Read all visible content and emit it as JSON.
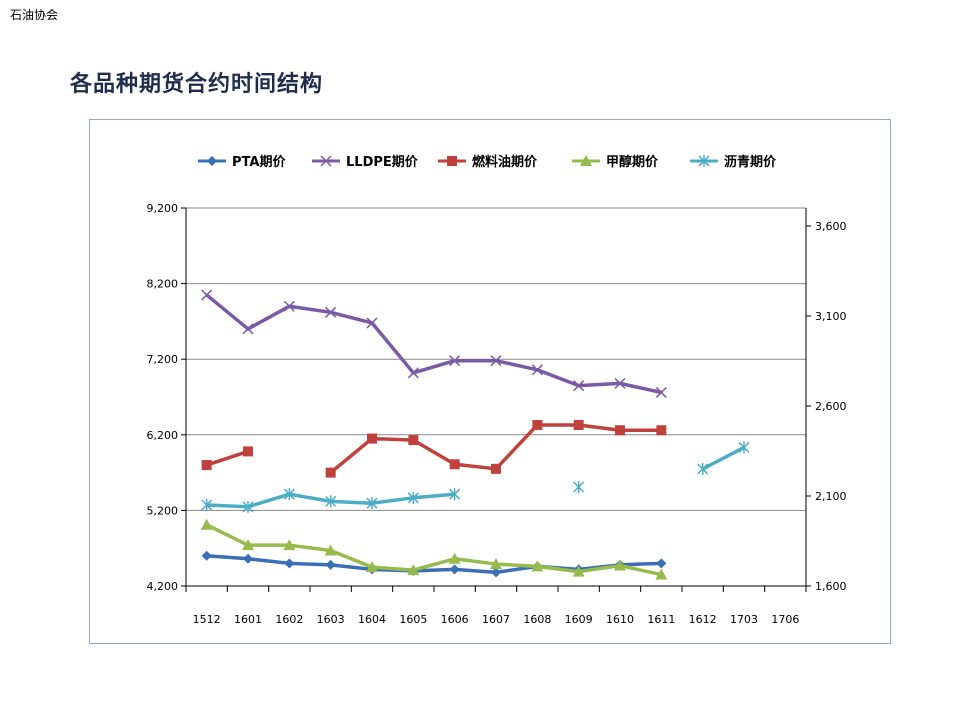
{
  "header": {
    "corner_label": "石油协会"
  },
  "page": {
    "title": "各品种期货合约时间结构"
  },
  "chart_data": {
    "type": "line",
    "categories": [
      "1512",
      "1601",
      "1602",
      "1603",
      "1604",
      "1605",
      "1606",
      "1607",
      "1608",
      "1609",
      "1610",
      "1611",
      "1612",
      "1703",
      "1706"
    ],
    "y_left": {
      "ylim": [
        4200,
        9200
      ],
      "ticks": [
        4200,
        5200,
        6200,
        7200,
        8200,
        9200
      ],
      "tick_labels": [
        "4,200",
        "5,200",
        "6,200",
        "7,200",
        "8,200",
        "9,200"
      ]
    },
    "y_right": {
      "ylim": [
        1600,
        3700
      ],
      "ticks": [
        1600,
        2100,
        2600,
        3100,
        3600
      ],
      "tick_labels": [
        "1,600",
        "2,100",
        "2,600",
        "3,100",
        "3,600"
      ]
    },
    "grid": true,
    "legend_position": "top",
    "series": [
      {
        "name": "PTA期价",
        "axis": "left",
        "color": "#3a6fb7",
        "marker": "diamond",
        "values": [
          4600,
          4560,
          4500,
          4480,
          4420,
          4400,
          4420,
          4380,
          4460,
          4420,
          4480,
          4500,
          null,
          null,
          null
        ]
      },
      {
        "name": "LLDPE期价",
        "axis": "left",
        "color": "#7a5aa6",
        "marker": "x",
        "values": [
          8050,
          7600,
          7900,
          7820,
          7680,
          7020,
          7180,
          7180,
          7060,
          6850,
          6880,
          6760,
          null,
          null,
          null
        ]
      },
      {
        "name": "燃料油期价",
        "axis": "left",
        "color": "#c0403c",
        "marker": "square",
        "values": [
          5800,
          5980,
          null,
          5700,
          6150,
          6130,
          5810,
          5750,
          6330,
          6330,
          6260,
          6260,
          null,
          null,
          null
        ]
      },
      {
        "name": "甲醇期价",
        "axis": "left",
        "color": "#96bb4c",
        "marker": "triangle",
        "values": [
          5010,
          4740,
          4740,
          4670,
          4450,
          4410,
          4560,
          4490,
          4460,
          4390,
          4470,
          4350,
          null,
          null,
          null
        ]
      },
      {
        "name": "沥青期价",
        "axis": "right",
        "color": "#4bacc6",
        "marker": "star",
        "values": [
          2050,
          2040,
          2110,
          2070,
          2060,
          2090,
          2110,
          null,
          null,
          2150,
          null,
          null,
          2250,
          2370,
          null
        ]
      }
    ]
  }
}
